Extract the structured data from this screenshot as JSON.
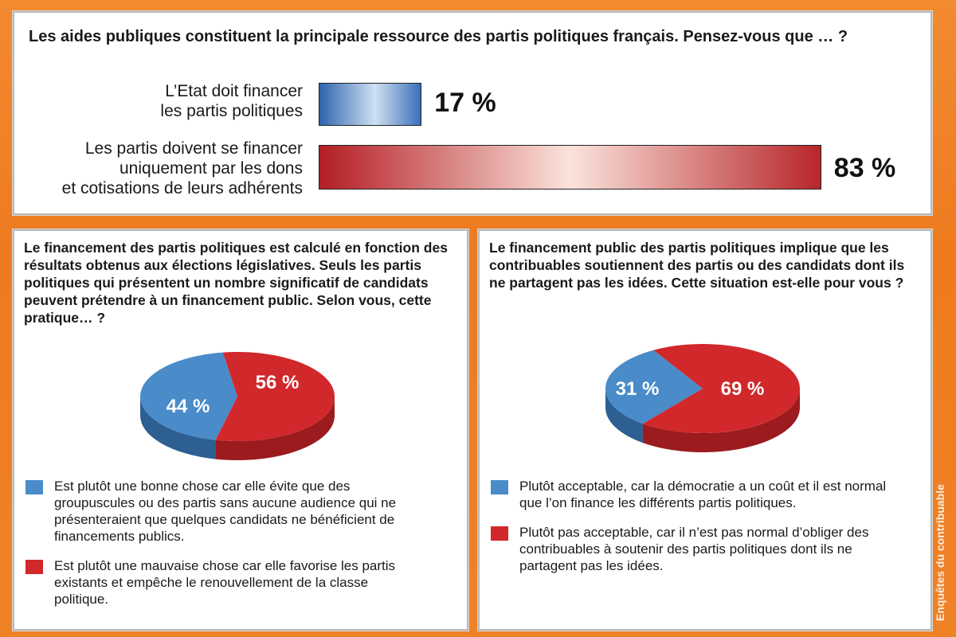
{
  "colors": {
    "blue": "#4a8bc9",
    "red": "#d1282b",
    "orange": "#ef7d22"
  },
  "top": {
    "question": "Les aides publiques constituent la principale ressource des partis politiques français. Pensez-vous que … ?",
    "items": [
      {
        "label_lines": [
          "L’Etat doit financer",
          "les partis politiques"
        ],
        "value_label": "17 %"
      },
      {
        "label_lines": [
          "Les partis doivent se financer",
          "uniquement par les dons",
          "et cotisations de leurs adhérents"
        ],
        "value_label": "83 %"
      }
    ]
  },
  "left": {
    "question": "Le financement des partis politiques est calculé en fonction des résultats obtenus aux élections législatives. Seuls les partis politiques qui présentent un nombre significatif de candidats peuvent prétendre à un financement public. Selon vous, cette pratique… ?",
    "slice_labels": [
      "44 %",
      "56 %"
    ],
    "legend": [
      "Est plutôt une bonne chose car elle évite que des groupuscules ou des partis sans aucune audience qui ne présenteraient que quelques candidats ne bénéficient de financements publics.",
      "Est plutôt une mauvaise chose car elle favorise les partis existants et empêche le renouvellement de la classe politique."
    ]
  },
  "right": {
    "question": "Le financement public des partis politiques implique que les contribuables soutiennent des partis ou des candidats dont ils ne partagent pas les idées. Cette situation est-elle pour vous ?",
    "slice_labels": [
      "31 %",
      "69 %"
    ],
    "legend": [
      "Plutôt acceptable, car la démocratie a un coût et il est normal que l’on finance les différents partis politiques.",
      "Plutôt pas acceptable, car il n’est pas normal d’obliger des contribuables à soutenir des partis politiques dont ils ne partagent pas les idées."
    ]
  },
  "credit": "Enquêtes du contribuable",
  "chart_data": [
    {
      "type": "bar",
      "categories": [
        "L’Etat doit financer les partis politiques",
        "Les partis doivent se financer uniquement par les dons et cotisations de leurs adhérents"
      ],
      "values": [
        17,
        83
      ],
      "xlim": [
        0,
        100
      ]
    },
    {
      "type": "pie",
      "categories": [
        "Est plutôt une bonne chose",
        "Est plutôt une mauvaise chose"
      ],
      "values": [
        44,
        56
      ]
    },
    {
      "type": "pie",
      "categories": [
        "Plutôt acceptable",
        "Plutôt pas acceptable"
      ],
      "values": [
        31,
        69
      ]
    }
  ]
}
